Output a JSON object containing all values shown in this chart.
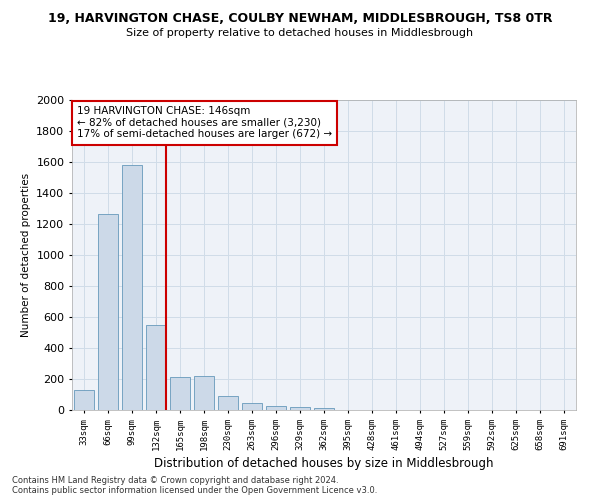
{
  "title1": "19, HARVINGTON CHASE, COULBY NEWHAM, MIDDLESBROUGH, TS8 0TR",
  "title2": "Size of property relative to detached houses in Middlesbrough",
  "xlabel": "Distribution of detached houses by size in Middlesbrough",
  "ylabel": "Number of detached properties",
  "footer1": "Contains HM Land Registry data © Crown copyright and database right 2024.",
  "footer2": "Contains public sector information licensed under the Open Government Licence v3.0.",
  "annotation_title": "19 HARVINGTON CHASE: 146sqm",
  "annotation_line1": "← 82% of detached houses are smaller (3,230)",
  "annotation_line2": "17% of semi-detached houses are larger (672) →",
  "bar_color": "#ccd9e8",
  "bar_edge_color": "#6699bb",
  "vline_color": "#cc0000",
  "annotation_box_color": "#cc0000",
  "categories": [
    "33sqm",
    "66sqm",
    "99sqm",
    "132sqm",
    "165sqm",
    "198sqm",
    "230sqm",
    "263sqm",
    "296sqm",
    "329sqm",
    "362sqm",
    "395sqm",
    "428sqm",
    "461sqm",
    "494sqm",
    "527sqm",
    "559sqm",
    "592sqm",
    "625sqm",
    "658sqm",
    "691sqm"
  ],
  "values": [
    130,
    1265,
    1580,
    550,
    215,
    220,
    90,
    45,
    28,
    18,
    15,
    0,
    0,
    0,
    0,
    0,
    0,
    0,
    0,
    0,
    0
  ],
  "ylim": [
    0,
    2000
  ],
  "yticks": [
    0,
    200,
    400,
    600,
    800,
    1000,
    1200,
    1400,
    1600,
    1800,
    2000
  ],
  "vline_bar_index": 3,
  "grid_color": "#d0dce8",
  "background_color": "#eef2f8"
}
